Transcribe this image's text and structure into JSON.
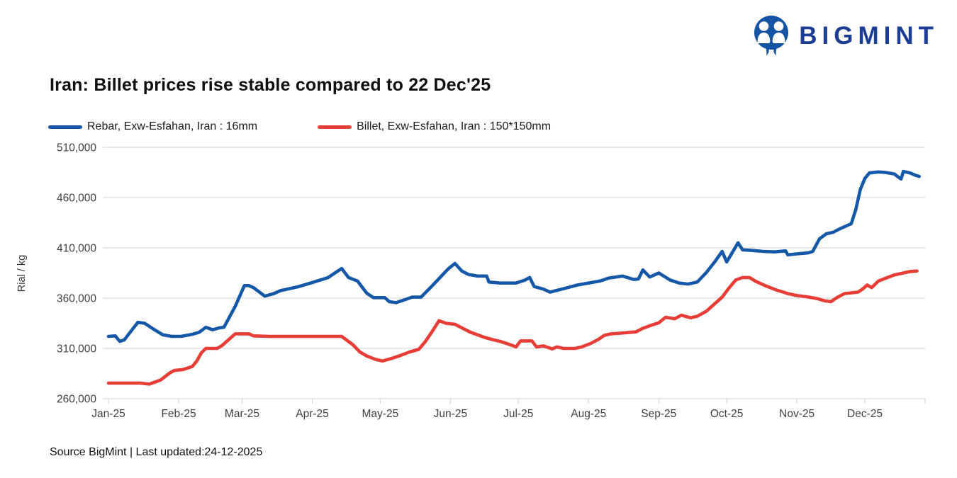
{
  "brand": {
    "name": "BIGMINT",
    "logo_color": "#1553a3",
    "text_color": "#1b3e94"
  },
  "chart": {
    "title": "Iran: Billet prices rise stable compared to 22 Dec'25",
    "y_axis_title": "Rial / kg"
  },
  "footer": {
    "source_note": "Source BigMint | Last updated:24-12-2025"
  },
  "chart_data": {
    "type": "line",
    "title": "Iran: Billet prices rise stable compared to 22 Dec'25",
    "ylabel": "Rial / kg",
    "ylim": [
      260000,
      510000
    ],
    "y_ticks": [
      260000,
      310000,
      360000,
      410000,
      460000,
      510000
    ],
    "x_tick_labels": [
      "Jan-25",
      "Feb-25",
      "Mar-25",
      "Apr-25",
      "May-25",
      "Jun-25",
      "Jul-25",
      "Aug-25",
      "Sep-25",
      "Oct-25",
      "Nov-25",
      "Dec-25"
    ],
    "x_tick_days": [
      0,
      31,
      59,
      90,
      120,
      151,
      181,
      212,
      243,
      273,
      304,
      334
    ],
    "grid": "horizontal",
    "gridline_color": "#d9d9d9",
    "legend_position": "top-left",
    "series": [
      {
        "name": "Rebar, Exw-Esfahan, Iran : 16mm",
        "color": "#1558a8",
        "points": [
          [
            0,
            322000
          ],
          [
            3,
            322500
          ],
          [
            5,
            317000
          ],
          [
            7,
            318500
          ],
          [
            13,
            336000
          ],
          [
            16,
            335000
          ],
          [
            20,
            329000
          ],
          [
            24,
            323500
          ],
          [
            28,
            322000
          ],
          [
            32,
            322000
          ],
          [
            37,
            324000
          ],
          [
            40,
            326000
          ],
          [
            43,
            331000
          ],
          [
            46,
            328500
          ],
          [
            49,
            330500
          ],
          [
            51,
            331000
          ],
          [
            56,
            352000
          ],
          [
            60,
            372500
          ],
          [
            62,
            372500
          ],
          [
            64,
            370500
          ],
          [
            69,
            362000
          ],
          [
            73,
            364500
          ],
          [
            76,
            367500
          ],
          [
            84,
            371500
          ],
          [
            90,
            375500
          ],
          [
            97,
            380500
          ],
          [
            103,
            389500
          ],
          [
            106,
            380500
          ],
          [
            110,
            377000
          ],
          [
            112,
            371000
          ],
          [
            114,
            365000
          ],
          [
            117,
            360500
          ],
          [
            122,
            360500
          ],
          [
            124,
            356500
          ],
          [
            127,
            355500
          ],
          [
            131,
            358500
          ],
          [
            134,
            361000
          ],
          [
            138,
            361000
          ],
          [
            142,
            370000
          ],
          [
            146,
            379500
          ],
          [
            150,
            389000
          ],
          [
            153,
            394500
          ],
          [
            156,
            387000
          ],
          [
            159,
            383500
          ],
          [
            163,
            382000
          ],
          [
            167,
            382000
          ],
          [
            168,
            376000
          ],
          [
            173,
            375000
          ],
          [
            180,
            375000
          ],
          [
            184,
            378000
          ],
          [
            186,
            380500
          ],
          [
            188,
            371500
          ],
          [
            192,
            369000
          ],
          [
            195,
            366000
          ],
          [
            202,
            370000
          ],
          [
            207,
            373000
          ],
          [
            212,
            375000
          ],
          [
            217,
            377000
          ],
          [
            221,
            380000
          ],
          [
            227,
            382000
          ],
          [
            232,
            378500
          ],
          [
            234,
            379000
          ],
          [
            236,
            388000
          ],
          [
            239,
            381000
          ],
          [
            243,
            385000
          ],
          [
            248,
            378000
          ],
          [
            252,
            375000
          ],
          [
            256,
            374000
          ],
          [
            260,
            376000
          ],
          [
            264,
            385500
          ],
          [
            268,
            397000
          ],
          [
            271,
            406500
          ],
          [
            273,
            396000
          ],
          [
            278,
            415000
          ],
          [
            280,
            408000
          ],
          [
            284,
            407500
          ],
          [
            289,
            406500
          ],
          [
            294,
            406000
          ],
          [
            299,
            407000
          ],
          [
            300,
            403000
          ],
          [
            304,
            404000
          ],
          [
            309,
            405000
          ],
          [
            311,
            406500
          ],
          [
            314,
            419000
          ],
          [
            317,
            424000
          ],
          [
            320,
            425500
          ],
          [
            323,
            429000
          ],
          [
            326,
            432000
          ],
          [
            328,
            434000
          ],
          [
            330,
            448000
          ],
          [
            332,
            468000
          ],
          [
            334,
            479000
          ],
          [
            336,
            484500
          ],
          [
            340,
            485500
          ],
          [
            343,
            485000
          ],
          [
            347,
            483500
          ],
          [
            349,
            480000
          ],
          [
            350,
            478500
          ],
          [
            351,
            486000
          ],
          [
            354,
            484500
          ],
          [
            356,
            482500
          ],
          [
            358,
            481000
          ]
        ]
      },
      {
        "name": "Billet, Exw-Esfahan, Iran : 150*150mm",
        "color": "#e63e36",
        "points": [
          [
            0,
            275500
          ],
          [
            4,
            275500
          ],
          [
            14,
            275500
          ],
          [
            18,
            274500
          ],
          [
            23,
            278500
          ],
          [
            27,
            285500
          ],
          [
            29,
            288000
          ],
          [
            33,
            289000
          ],
          [
            37,
            292000
          ],
          [
            39,
            297500
          ],
          [
            41,
            305500
          ],
          [
            43,
            310000
          ],
          [
            48,
            310000
          ],
          [
            50,
            312500
          ],
          [
            53,
            318500
          ],
          [
            56,
            324500
          ],
          [
            62,
            324500
          ],
          [
            64,
            322500
          ],
          [
            71,
            322000
          ],
          [
            84,
            322000
          ],
          [
            96,
            322000
          ],
          [
            103,
            322000
          ],
          [
            108,
            313500
          ],
          [
            111,
            306500
          ],
          [
            114,
            302500
          ],
          [
            118,
            299000
          ],
          [
            121,
            297500
          ],
          [
            125,
            300000
          ],
          [
            129,
            303000
          ],
          [
            133,
            306500
          ],
          [
            137,
            309000
          ],
          [
            140,
            317000
          ],
          [
            143,
            327000
          ],
          [
            146,
            337500
          ],
          [
            149,
            335000
          ],
          [
            153,
            334000
          ],
          [
            156,
            330500
          ],
          [
            160,
            326000
          ],
          [
            163,
            323500
          ],
          [
            166,
            321000
          ],
          [
            170,
            318500
          ],
          [
            173,
            317000
          ],
          [
            177,
            314000
          ],
          [
            180,
            311500
          ],
          [
            182,
            317500
          ],
          [
            187,
            317500
          ],
          [
            189,
            311500
          ],
          [
            192,
            312500
          ],
          [
            196,
            309500
          ],
          [
            198,
            311500
          ],
          [
            201,
            310000
          ],
          [
            206,
            310000
          ],
          [
            209,
            311500
          ],
          [
            213,
            315000
          ],
          [
            216,
            318500
          ],
          [
            219,
            323000
          ],
          [
            222,
            324500
          ],
          [
            228,
            325500
          ],
          [
            233,
            326500
          ],
          [
            236,
            330000
          ],
          [
            239,
            332500
          ],
          [
            243,
            335500
          ],
          [
            246,
            341000
          ],
          [
            250,
            339500
          ],
          [
            253,
            343000
          ],
          [
            257,
            340500
          ],
          [
            260,
            342000
          ],
          [
            264,
            347000
          ],
          [
            267,
            353000
          ],
          [
            271,
            361000
          ],
          [
            274,
            370000
          ],
          [
            277,
            378000
          ],
          [
            280,
            380500
          ],
          [
            283,
            380500
          ],
          [
            286,
            376500
          ],
          [
            290,
            372500
          ],
          [
            295,
            368000
          ],
          [
            300,
            364500
          ],
          [
            304,
            362500
          ],
          [
            308,
            361500
          ],
          [
            313,
            359500
          ],
          [
            316,
            357500
          ],
          [
            319,
            356500
          ],
          [
            322,
            361000
          ],
          [
            325,
            364500
          ],
          [
            329,
            365500
          ],
          [
            331,
            366000
          ],
          [
            333,
            369000
          ],
          [
            335,
            373000
          ],
          [
            337,
            370500
          ],
          [
            340,
            377000
          ],
          [
            344,
            380500
          ],
          [
            347,
            383000
          ],
          [
            351,
            385000
          ],
          [
            354,
            386500
          ],
          [
            357,
            387000
          ]
        ]
      }
    ]
  }
}
